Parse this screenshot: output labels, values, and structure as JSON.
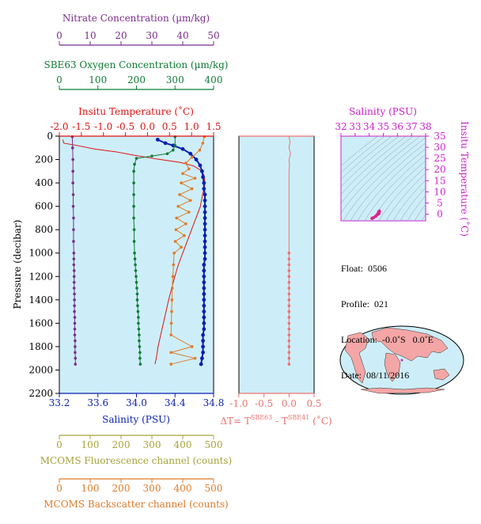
{
  "colors": {
    "nitrate": "#7b2d8b",
    "oxygen": "#0f7a35",
    "temperature": "#e01010",
    "salinity": "#0a1fb0",
    "fluorescence": "#a7a33a",
    "backscatter": "#e07a28",
    "delta_t": "#f07070",
    "ts_axis": "#cc22cc",
    "panel_fill": "#cdeef8",
    "map_land": "#f4a6a6",
    "map_ocean": "#cdeef8"
  },
  "info": {
    "float": "Float:  0506",
    "profile": "Profile:  021",
    "location": "Location:  -0.0˚S   0.0˚E",
    "date": "Date:  08/11/2016"
  },
  "chart_data": [
    {
      "type": "line",
      "name": "main-profile",
      "ylabel": "Pressure (decibar)",
      "ylim": [
        2200,
        0
      ],
      "yticks": [
        "0",
        "200",
        "400",
        "600",
        "800",
        "1000",
        "1200",
        "1400",
        "1600",
        "1800",
        "2000",
        "2200"
      ],
      "grid": false,
      "axes": {
        "nitrate": {
          "label": "Nitrate Concentration (µm/kg)",
          "range": [
            0,
            50
          ],
          "ticks": [
            "0",
            "10",
            "20",
            "30",
            "40",
            "50"
          ]
        },
        "oxygen": {
          "label": "SBE63 Oxygen Concentration (µm/kg)",
          "range": [
            0,
            400
          ],
          "ticks": [
            "0",
            "100",
            "200",
            "300",
            "400"
          ]
        },
        "temperature": {
          "label": "Insitu Temperature (˚C)",
          "range": [
            -2.0,
            1.5
          ],
          "ticks": [
            "-2.0",
            "-1.5",
            "-1.0",
            "-0.5",
            "0.0",
            "0.5",
            "1.0",
            "1.5"
          ]
        },
        "salinity": {
          "label": "Salinity (PSU)",
          "range": [
            33.2,
            34.8
          ],
          "ticks": [
            "33.2",
            "33.6",
            "34.0",
            "34.4",
            "34.8"
          ]
        },
        "fluorescence": {
          "label": "MCOMS Fluorescence channel (counts)",
          "range": [
            0,
            500
          ],
          "ticks": [
            "0",
            "100",
            "200",
            "300",
            "400",
            "500"
          ]
        },
        "backscatter": {
          "label": "MCOMS Backscatter channel (counts)",
          "range": [
            0,
            500
          ],
          "ticks": [
            "0",
            "100",
            "200",
            "300",
            "400",
            "500"
          ]
        }
      },
      "series": [
        {
          "key": "temperature",
          "axis": "temperature",
          "points": [
            [
              -1.92,
              30
            ],
            [
              -1.9,
              60
            ],
            [
              -1.6,
              80
            ],
            [
              -1.2,
              110
            ],
            [
              -0.7,
              135
            ],
            [
              -0.35,
              160
            ],
            [
              0.2,
              195
            ],
            [
              0.75,
              225
            ],
            [
              1.05,
              255
            ],
            [
              1.2,
              290
            ],
            [
              1.28,
              330
            ],
            [
              1.3,
              380
            ],
            [
              1.3,
              420
            ],
            [
              1.25,
              500
            ],
            [
              1.2,
              600
            ],
            [
              1.1,
              700
            ],
            [
              1.0,
              800
            ],
            [
              0.9,
              900
            ],
            [
              0.8,
              1000
            ],
            [
              0.7,
              1100
            ],
            [
              0.62,
              1200
            ],
            [
              0.55,
              1300
            ],
            [
              0.48,
              1400
            ],
            [
              0.42,
              1500
            ],
            [
              0.36,
              1600
            ],
            [
              0.3,
              1700
            ],
            [
              0.24,
              1800
            ],
            [
              0.2,
              1900
            ],
            [
              0.17,
              1950
            ]
          ]
        },
        {
          "key": "salinity",
          "axis": "salinity",
          "points": [
            [
              34.22,
              30
            ],
            [
              34.3,
              60
            ],
            [
              34.38,
              80
            ],
            [
              34.48,
              110
            ],
            [
              34.56,
              150
            ],
            [
              34.62,
              200
            ],
            [
              34.66,
              250
            ],
            [
              34.68,
              300
            ],
            [
              34.69,
              350
            ],
            [
              34.7,
              400
            ],
            [
              34.7,
              450
            ],
            [
              34.71,
              500
            ],
            [
              34.71,
              550
            ],
            [
              34.71,
              600
            ],
            [
              34.71,
              650
            ],
            [
              34.71,
              700
            ],
            [
              34.71,
              750
            ],
            [
              34.71,
              800
            ],
            [
              34.71,
              850
            ],
            [
              34.71,
              900
            ],
            [
              34.71,
              950
            ],
            [
              34.71,
              1000
            ],
            [
              34.71,
              1050
            ],
            [
              34.7,
              1100
            ],
            [
              34.7,
              1150
            ],
            [
              34.7,
              1200
            ],
            [
              34.7,
              1250
            ],
            [
              34.7,
              1300
            ],
            [
              34.7,
              1350
            ],
            [
              34.7,
              1400
            ],
            [
              34.7,
              1450
            ],
            [
              34.7,
              1500
            ],
            [
              34.7,
              1550
            ],
            [
              34.7,
              1600
            ],
            [
              34.7,
              1650
            ],
            [
              34.69,
              1700
            ],
            [
              34.69,
              1750
            ],
            [
              34.69,
              1800
            ],
            [
              34.69,
              1850
            ],
            [
              34.68,
              1900
            ],
            [
              34.67,
              1950
            ]
          ]
        },
        {
          "key": "oxygen",
          "axis": "oxygen",
          "points": [
            [
              300,
              5
            ],
            [
              300,
              80
            ],
            [
              295,
              120
            ],
            [
              280,
              150
            ],
            [
              240,
              170
            ],
            [
              200,
              190
            ],
            [
              195,
              240
            ],
            [
              193,
              300
            ],
            [
              193,
              400
            ],
            [
              193,
              500
            ],
            [
              193,
              600
            ],
            [
              193,
              700
            ],
            [
              194,
              800
            ],
            [
              194,
              900
            ],
            [
              195,
              1000
            ],
            [
              196,
              1050
            ],
            [
              197,
              1100
            ],
            [
              198,
              1150
            ],
            [
              199,
              1200
            ],
            [
              200,
              1250
            ],
            [
              201,
              1300
            ],
            [
              202,
              1350
            ],
            [
              202,
              1400
            ],
            [
              203,
              1450
            ],
            [
              204,
              1500
            ],
            [
              205,
              1550
            ],
            [
              205,
              1600
            ],
            [
              206,
              1650
            ],
            [
              207,
              1700
            ],
            [
              207,
              1750
            ],
            [
              208,
              1800
            ],
            [
              209,
              1850
            ],
            [
              209,
              1900
            ],
            [
              210,
              1950
            ]
          ]
        },
        {
          "key": "nitrate",
          "axis": "nitrate",
          "points": [
            [
              4.2,
              5
            ],
            [
              4.3,
              100
            ],
            [
              4.4,
              200
            ],
            [
              4.4,
              300
            ],
            [
              4.4,
              400
            ],
            [
              4.5,
              500
            ],
            [
              4.5,
              600
            ],
            [
              4.6,
              700
            ],
            [
              4.6,
              800
            ],
            [
              4.6,
              900
            ],
            [
              4.7,
              1000
            ],
            [
              4.7,
              1050
            ],
            [
              4.7,
              1100
            ],
            [
              4.8,
              1150
            ],
            [
              4.8,
              1200
            ],
            [
              4.8,
              1250
            ],
            [
              4.8,
              1300
            ],
            [
              4.9,
              1350
            ],
            [
              4.9,
              1400
            ],
            [
              4.9,
              1450
            ],
            [
              4.9,
              1500
            ],
            [
              5.0,
              1550
            ],
            [
              5.0,
              1600
            ],
            [
              5.0,
              1650
            ],
            [
              5.0,
              1700
            ],
            [
              5.1,
              1750
            ],
            [
              5.1,
              1800
            ],
            [
              5.1,
              1850
            ],
            [
              5.2,
              1900
            ],
            [
              5.2,
              1950
            ]
          ]
        },
        {
          "key": "backscatter",
          "axis": "backscatter",
          "points": [
            [
              470,
              5
            ],
            [
              465,
              60
            ],
            [
              455,
              120
            ],
            [
              430,
              180
            ],
            [
              410,
              230
            ],
            [
              420,
              280
            ],
            [
              400,
              320
            ],
            [
              440,
              360
            ],
            [
              395,
              400
            ],
            [
              430,
              450
            ],
            [
              390,
              500
            ],
            [
              425,
              550
            ],
            [
              385,
              600
            ],
            [
              420,
              650
            ],
            [
              380,
              700
            ],
            [
              410,
              750
            ],
            [
              378,
              800
            ],
            [
              405,
              850
            ],
            [
              376,
              900
            ],
            [
              395,
              950
            ],
            [
              372,
              1000
            ],
            [
              370,
              1100
            ],
            [
              368,
              1200
            ],
            [
              366,
              1300
            ],
            [
              365,
              1400
            ],
            [
              364,
              1500
            ],
            [
              363,
              1600
            ],
            [
              362,
              1700
            ],
            [
              430,
              1800
            ],
            [
              362,
              1850
            ],
            [
              440,
              1900
            ],
            [
              362,
              1950
            ]
          ]
        }
      ]
    },
    {
      "type": "line",
      "name": "delta-t",
      "xlabel": "ΔT= T SBE63 - T SBE41 (˚C)",
      "xlim": [
        -1.0,
        0.5
      ],
      "xticks": [
        "-1.0",
        "-0.5",
        "0.0",
        "0.5"
      ],
      "ylim": [
        2200,
        0
      ],
      "series": [
        {
          "key": "delta_t",
          "points": [
            [
              0.0,
              5
            ],
            [
              0.02,
              50
            ],
            [
              0.0,
              100
            ],
            [
              0.03,
              150
            ],
            [
              0.0,
              200
            ],
            [
              0.01,
              250
            ],
            [
              0.0,
              300
            ],
            [
              0.0,
              400
            ],
            [
              0.0,
              500
            ],
            [
              0.0,
              600
            ],
            [
              0.0,
              700
            ],
            [
              0.0,
              800
            ],
            [
              0.0,
              900
            ],
            [
              0.0,
              1000
            ],
            [
              0.0,
              1050
            ],
            [
              0.0,
              1100
            ],
            [
              0.0,
              1150
            ],
            [
              0.0,
              1200
            ],
            [
              0.0,
              1250
            ],
            [
              0.0,
              1300
            ],
            [
              0.0,
              1350
            ],
            [
              0.0,
              1400
            ],
            [
              0.0,
              1450
            ],
            [
              0.0,
              1500
            ],
            [
              0.0,
              1550
            ],
            [
              0.0,
              1600
            ],
            [
              0.0,
              1650
            ],
            [
              0.0,
              1700
            ],
            [
              0.0,
              1750
            ],
            [
              0.0,
              1800
            ],
            [
              0.0,
              1850
            ],
            [
              0.0,
              1900
            ],
            [
              0.0,
              1950
            ]
          ]
        }
      ]
    },
    {
      "type": "scatter",
      "name": "ts-diagram",
      "xlabel": "Salinity (PSU)",
      "ylabel": "Insitu Temperature (˚C)",
      "xlim": [
        32,
        38
      ],
      "ylim": [
        -3,
        35
      ],
      "xticks": [
        "32",
        "33",
        "34",
        "35",
        "36",
        "37",
        "38"
      ],
      "yticks": [
        "0",
        "5",
        "10",
        "15",
        "20",
        "25",
        "30",
        "35"
      ],
      "series": [
        {
          "key": "ts",
          "points": [
            [
              34.2,
              -1.9
            ],
            [
              34.3,
              -1.6
            ],
            [
              34.45,
              -1.0
            ],
            [
              34.55,
              -0.4
            ],
            [
              34.62,
              0.2
            ],
            [
              34.66,
              0.7
            ],
            [
              34.68,
              1.0
            ],
            [
              34.7,
              1.2
            ],
            [
              34.71,
              1.3
            ],
            [
              34.71,
              1.25
            ],
            [
              34.7,
              1.0
            ],
            [
              34.7,
              0.8
            ],
            [
              34.69,
              0.5
            ],
            [
              34.68,
              0.2
            ]
          ]
        }
      ]
    }
  ]
}
